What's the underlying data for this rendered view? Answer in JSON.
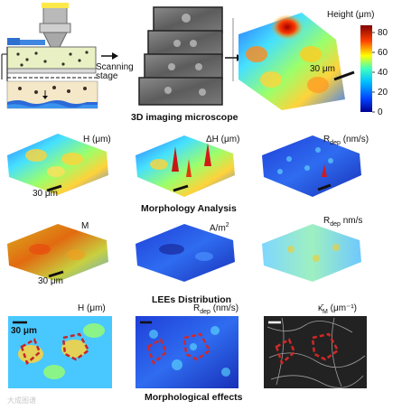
{
  "top": {
    "arrow_label": "Scanning\nstage",
    "caption": "3D imaging microscope",
    "scale_label": "30 μm",
    "colorbar": {
      "title": "Height (μm)",
      "ticks": [
        "80",
        "60",
        "40",
        "20",
        "0"
      ]
    }
  },
  "morphology": {
    "caption": "Morphology Analysis",
    "panels": [
      {
        "label": "H (μm)",
        "scale": "30 μm"
      },
      {
        "label": "ΔH (μm)"
      },
      {
        "label": "R",
        "sub": "dep",
        "suffix": " (nm/s)"
      }
    ]
  },
  "lees": {
    "caption": "LEEs Distribution",
    "panels": [
      {
        "label": "M",
        "scale": "30 μm"
      },
      {
        "label": "A/m",
        "sup": "2"
      },
      {
        "label": "R",
        "sub": "dep",
        "suffix": " nm/s"
      }
    ]
  },
  "effects": {
    "caption": "Morphological effects",
    "panels": [
      {
        "label": "H (μm)",
        "scale": "30 μm"
      },
      {
        "label": "R",
        "sub": "dep",
        "suffix": " (nm/s)"
      },
      {
        "label": "κ̄",
        "sub": "M",
        "suffix": " (μm⁻¹)"
      }
    ]
  },
  "watermark": "大成图谱"
}
